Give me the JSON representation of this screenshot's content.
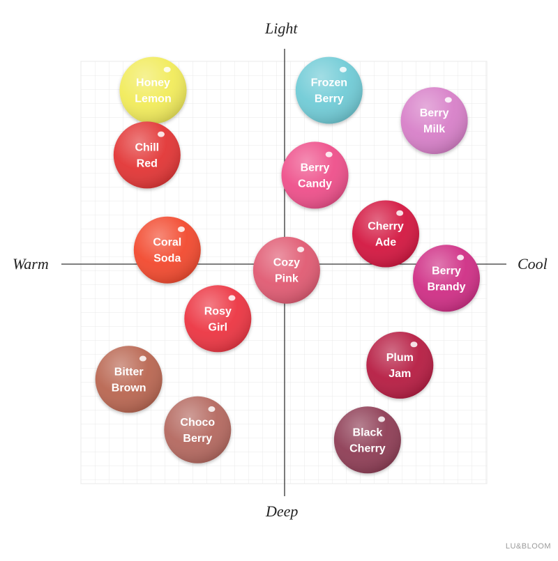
{
  "axes": {
    "top": "Light",
    "bottom": "Deep",
    "left": "Warm",
    "right": "Cool"
  },
  "brand": "LU&BLOOM",
  "shades": [
    {
      "id": "honey-lemon",
      "lines": [
        "Honey",
        "Lemon"
      ],
      "color": "#F1EB5A",
      "warm_cool": -0.65,
      "light_deep": 0.86
    },
    {
      "id": "frozen-berry",
      "lines": [
        "Frozen",
        "Berry"
      ],
      "color": "#6FCBD6",
      "warm_cool": 0.22,
      "light_deep": 0.86
    },
    {
      "id": "berry-milk",
      "lines": [
        "Berry",
        "Milk"
      ],
      "color": "#D77FC8",
      "warm_cool": 0.74,
      "light_deep": 0.71
    },
    {
      "id": "chill-red",
      "lines": [
        "Chill",
        "Red"
      ],
      "color": "#E23535",
      "warm_cool": -0.68,
      "light_deep": 0.54
    },
    {
      "id": "berry-candy",
      "lines": [
        "Berry",
        "Candy"
      ],
      "color": "#EE4F8A",
      "warm_cool": 0.15,
      "light_deep": 0.44
    },
    {
      "id": "cherry-ade",
      "lines": [
        "Cherry",
        "Ade"
      ],
      "color": "#D3123F",
      "warm_cool": 0.5,
      "light_deep": 0.15
    },
    {
      "id": "coral-soda",
      "lines": [
        "Coral",
        "Soda"
      ],
      "color": "#F24A2E",
      "warm_cool": -0.58,
      "light_deep": 0.07
    },
    {
      "id": "cozy-pink",
      "lines": [
        "Cozy",
        "Pink"
      ],
      "color": "#E05A72",
      "warm_cool": 0.01,
      "light_deep": -0.03
    },
    {
      "id": "berry-brandy",
      "lines": [
        "Berry",
        "Brandy"
      ],
      "color": "#CF2F85",
      "warm_cool": 0.8,
      "light_deep": -0.07
    },
    {
      "id": "rosy-girl",
      "lines": [
        "Rosy",
        "Girl"
      ],
      "color": "#EC3542",
      "warm_cool": -0.33,
      "light_deep": -0.27
    },
    {
      "id": "plum-jam",
      "lines": [
        "Plum",
        "Jam"
      ],
      "color": "#B61E43",
      "warm_cool": 0.57,
      "light_deep": -0.5
    },
    {
      "id": "bitter-brown",
      "lines": [
        "Bitter",
        "Brown"
      ],
      "color": "#B96651",
      "warm_cool": -0.77,
      "light_deep": -0.57
    },
    {
      "id": "choco-berry",
      "lines": [
        "Choco",
        "Berry"
      ],
      "color": "#B4685E",
      "warm_cool": -0.43,
      "light_deep": -0.82
    },
    {
      "id": "black-cherry",
      "lines": [
        "Black",
        "Cherry"
      ],
      "color": "#8E3C55",
      "warm_cool": 0.41,
      "light_deep": -0.87
    }
  ]
}
